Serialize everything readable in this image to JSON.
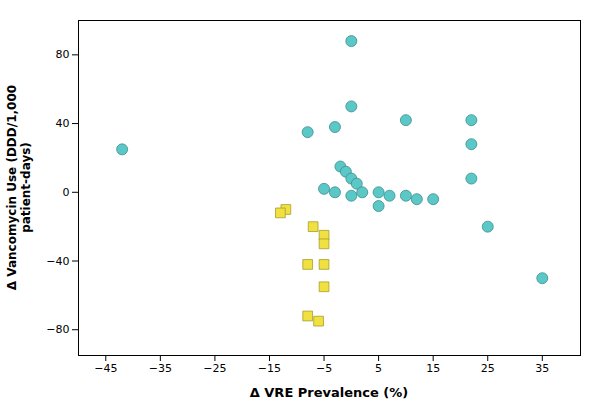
{
  "chart_data": {
    "type": "scatter",
    "xlabel": "Δ VRE Prevalence (%)",
    "ylabel": "Δ Vancomycin Use (DDD/1,000\npatient-days)",
    "series": [
      {
        "marker": "circle",
        "color": "#5BC8C8",
        "x": [
          -42,
          0,
          0,
          -8,
          -3,
          10,
          22,
          22,
          -2,
          -1,
          0,
          1,
          -5,
          -3,
          0,
          2,
          5,
          7,
          10,
          12,
          15,
          5,
          22,
          25,
          35
        ],
        "values": [
          25,
          88,
          50,
          35,
          38,
          42,
          42,
          28,
          15,
          12,
          8,
          5,
          2,
          0,
          -2,
          0,
          0,
          -2,
          -2,
          -4,
          -4,
          -8,
          8,
          -20,
          -50
        ]
      },
      {
        "marker": "square",
        "color": "#F0E040",
        "x": [
          -12,
          -13,
          -7,
          -5,
          -5,
          -5,
          -8,
          -5,
          -8,
          -6
        ],
        "values": [
          -10,
          -12,
          -20,
          -25,
          -30,
          -42,
          -42,
          -55,
          -72,
          -75
        ]
      }
    ],
    "xlim": [
      -50,
      42
    ],
    "ylim": [
      -95,
      100
    ],
    "xticks": [
      -45,
      -35,
      -25,
      -15,
      -5,
      5,
      15,
      25,
      35
    ],
    "yticks": [
      -80,
      -40,
      0,
      40,
      80
    ],
    "grid": false
  }
}
